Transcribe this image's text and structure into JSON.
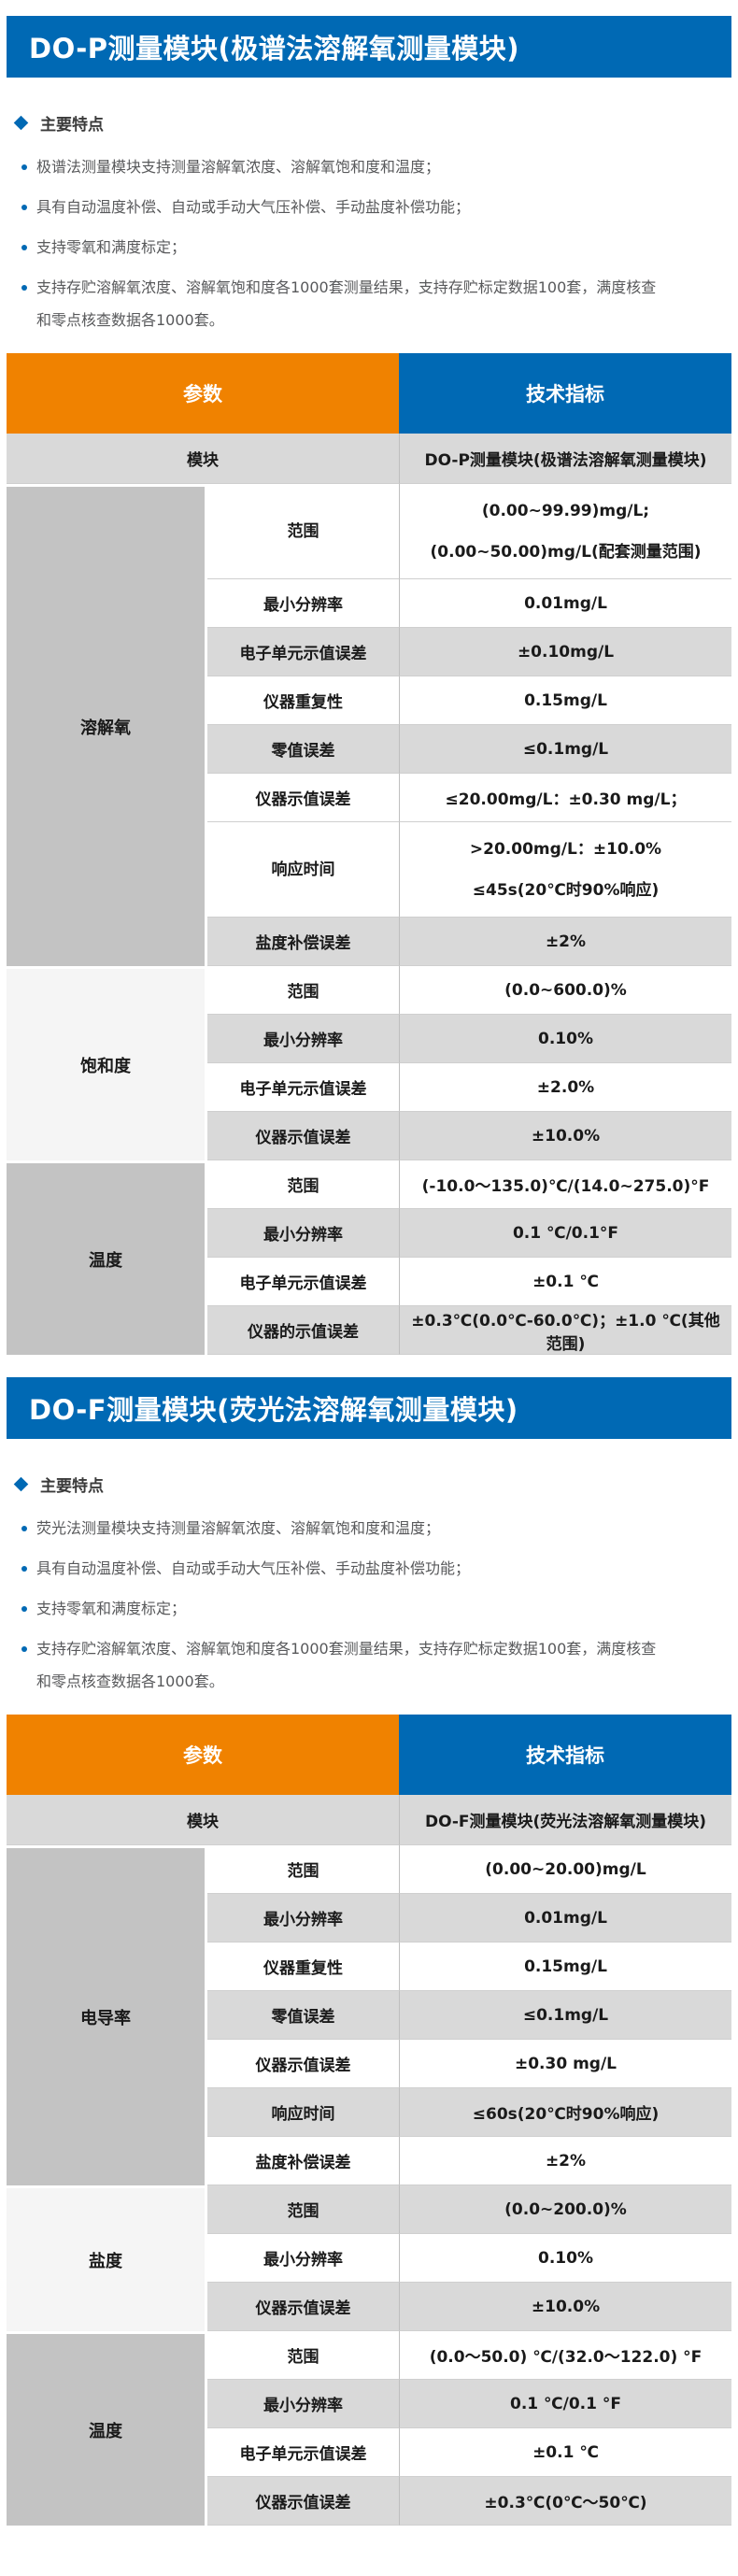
{
  "colors": {
    "accent_blue": "#0069B4",
    "accent_orange": "#F08200",
    "row_gray": "#D9D9D9",
    "group_cell_dark": "#C3C3C3",
    "group_cell_light": "#F5F5F5",
    "feature_text_gray": "#58595B"
  },
  "icons": {
    "feature_title_marker": "diamond-icon",
    "feature_item_marker": "bullet-dot-icon"
  },
  "sections": [
    {
      "title": "DO-P测量模块(极谱法溶解氧测量模块)",
      "features_title": "主要特点",
      "features": [
        "极谱法测量模块支持测量溶解氧浓度、溶解氧饱和度和温度；",
        "具有自动温度补偿、自动或手动大气压补偿、手动盐度补偿功能；",
        "支持零氧和满度标定；",
        "支持存贮溶解氧浓度、溶解氧饱和度各1000套测量结果，支持存贮标定数据100套，满度核查\n和零点核查数据各1000套。"
      ],
      "table": {
        "headers": [
          "参数",
          "技术指标"
        ],
        "module_row": {
          "label": "模块",
          "value": "DO-P测量模块(极谱法溶解氧测量模块)"
        },
        "groups": [
          {
            "name": "溶解氧",
            "shade": "dark",
            "rows": [
              {
                "param": "范围",
                "value": "(0.00~99.99)mg/L;\n(0.00~50.00)mg/L(配套测量范围)",
                "bg": "white",
                "tall": true
              },
              {
                "param": "最小分辨率",
                "value": "0.01mg/L",
                "bg": "white"
              },
              {
                "param": "电子单元示值误差",
                "value": "±0.10mg/L",
                "bg": "gray"
              },
              {
                "param": "仪器重复性",
                "value": "0.15mg/L",
                "bg": "white"
              },
              {
                "param": "零值误差",
                "value": "≤0.1mg/L",
                "bg": "gray"
              },
              {
                "param": "仪器示值误差",
                "value": "≤20.00mg/L：±0.30 mg/L；",
                "bg": "white"
              },
              {
                "param": "响应时间",
                "value": ">20.00mg/L：±10.0%\n≤45s(20℃时90%响应)",
                "bg": "white",
                "tall": true
              },
              {
                "param": "盐度补偿误差",
                "value": "±2%",
                "bg": "gray"
              }
            ]
          },
          {
            "name": "饱和度",
            "shade": "light",
            "rows": [
              {
                "param": "范围",
                "value": "(0.0~600.0)%",
                "bg": "white"
              },
              {
                "param": "最小分辨率",
                "value": "0.10%",
                "bg": "gray"
              },
              {
                "param": "电子单元示值误差",
                "value": "±2.0%",
                "bg": "white"
              },
              {
                "param": "仪器示值误差",
                "value": "±10.0%",
                "bg": "gray"
              }
            ]
          },
          {
            "name": "温度",
            "shade": "dark",
            "rows": [
              {
                "param": "范围",
                "value": "(-10.0～135.0)℃/(14.0~275.0)°F",
                "bg": "white"
              },
              {
                "param": "最小分辨率",
                "value": "0.1 ℃/0.1°F",
                "bg": "gray"
              },
              {
                "param": "电子单元示值误差",
                "value": "±0.1 ℃",
                "bg": "white"
              },
              {
                "param": "仪器的示值误差",
                "value": "±0.3℃(0.0℃-60.0℃)；±1.0 ℃(其他范围)",
                "bg": "gray"
              }
            ]
          }
        ]
      }
    },
    {
      "title": "DO-F测量模块(荧光法溶解氧测量模块)",
      "features_title": "主要特点",
      "features": [
        "荧光法测量模块支持测量溶解氧浓度、溶解氧饱和度和温度；",
        "具有自动温度补偿、自动或手动大气压补偿、手动盐度补偿功能；",
        "支持零氧和满度标定；",
        "支持存贮溶解氧浓度、溶解氧饱和度各1000套测量结果，支持存贮标定数据100套，满度核查\n和零点核查数据各1000套。"
      ],
      "table": {
        "headers": [
          "参数",
          "技术指标"
        ],
        "module_row": {
          "label": "模块",
          "value": "DO-F测量模块(荧光法溶解氧测量模块)"
        },
        "groups": [
          {
            "name": "电导率",
            "shade": "dark",
            "rows": [
              {
                "param": "范围",
                "value": "(0.00~20.00)mg/L",
                "bg": "white"
              },
              {
                "param": "最小分辨率",
                "value": "0.01mg/L",
                "bg": "gray"
              },
              {
                "param": "仪器重复性",
                "value": "0.15mg/L",
                "bg": "white"
              },
              {
                "param": "零值误差",
                "value": "≤0.1mg/L",
                "bg": "gray"
              },
              {
                "param": "仪器示值误差",
                "value": "±0.30 mg/L",
                "bg": "white"
              },
              {
                "param": "响应时间",
                "value": "≤60s(20℃时90%响应)",
                "bg": "gray"
              },
              {
                "param": "盐度补偿误差",
                "value": "±2%",
                "bg": "white"
              }
            ]
          },
          {
            "name": "盐度",
            "shade": "light",
            "rows": [
              {
                "param": "范围",
                "value": "(0.0~200.0)%",
                "bg": "gray"
              },
              {
                "param": "最小分辨率",
                "value": "0.10%",
                "bg": "white"
              },
              {
                "param": "仪器示值误差",
                "value": "±10.0%",
                "bg": "gray"
              }
            ]
          },
          {
            "name": "温度",
            "shade": "dark",
            "rows": [
              {
                "param": "范围",
                "value": "(0.0～50.0) ℃/(32.0～122.0) °F",
                "bg": "white"
              },
              {
                "param": "最小分辨率",
                "value": "0.1 ℃/0.1 °F",
                "bg": "gray"
              },
              {
                "param": "电子单元示值误差",
                "value": "±0.1 ℃",
                "bg": "white"
              },
              {
                "param": "仪器示值误差",
                "value": "±0.3℃(0℃～50℃)",
                "bg": "gray"
              }
            ]
          }
        ]
      }
    }
  ]
}
